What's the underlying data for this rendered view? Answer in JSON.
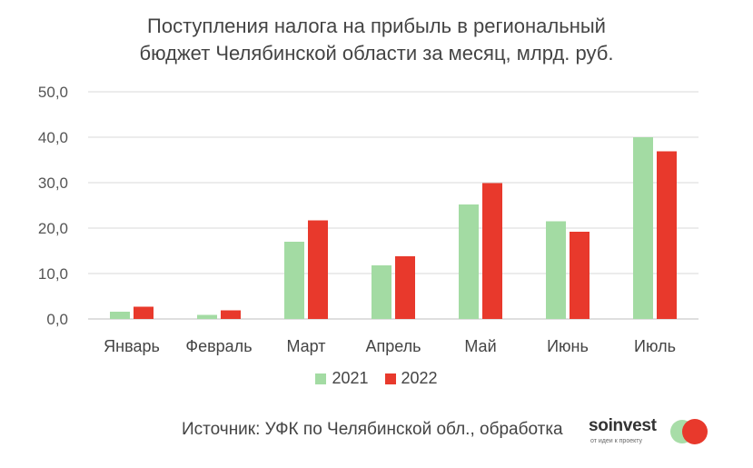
{
  "title": {
    "line1": "Поступления налога на прибыль в региональный",
    "line2": "бюджет Челябинской области за месяц, млрд. руб."
  },
  "chart_data": {
    "type": "bar",
    "title": "Поступления налога на прибыль в региональный бюджет Челябинской области за месяц, млрд. руб.",
    "categories": [
      "Январь",
      "Февраль",
      "Март",
      "Апрель",
      "Май",
      "Июнь",
      "Июль"
    ],
    "series": [
      {
        "name": "2021",
        "color": "#a3dba3",
        "values": [
          1.6,
          0.9,
          17.0,
          11.8,
          25.2,
          21.5,
          40.0
        ]
      },
      {
        "name": "2022",
        "color": "#e8392c",
        "values": [
          2.7,
          1.9,
          21.7,
          13.8,
          29.9,
          19.2,
          36.9
        ]
      }
    ],
    "y_ticks": [
      "0,0",
      "10,0",
      "20,0",
      "30,0",
      "40,0",
      "50,0"
    ],
    "ylim": [
      0,
      50
    ],
    "grid": true,
    "legend": "bottom-center"
  },
  "source": "Источник: УФК по Челябинской обл., обработка",
  "brand": {
    "name": "soinvest",
    "tagline": "от идеи к проекту",
    "logo_colors": [
      "#a3dba3",
      "#e8392c"
    ]
  }
}
